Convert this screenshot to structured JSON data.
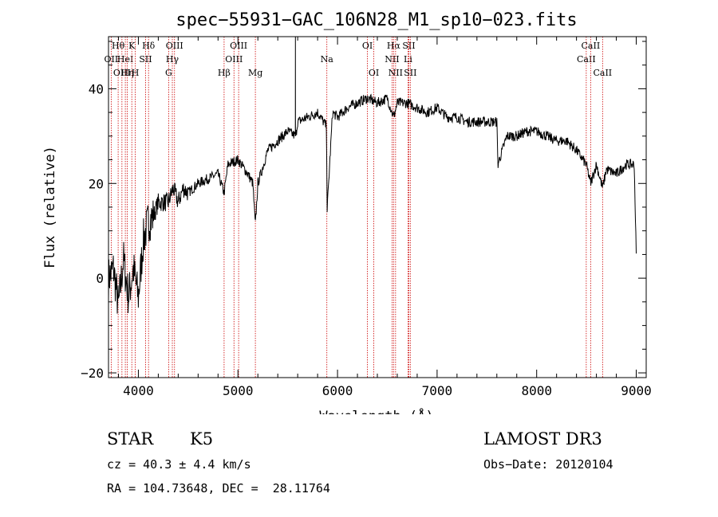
{
  "chart_data": {
    "type": "line",
    "title": "spec−55931−GAC_106N28_M1_sp10−023.fits",
    "xlabel": "Wavelength (Å)",
    "ylabel": "Flux (relative)",
    "xlim": [
      3700,
      9100
    ],
    "ylim": [
      -21,
      51
    ],
    "x_ticks": [
      4000,
      5000,
      6000,
      7000,
      8000,
      9000
    ],
    "y_ticks": [
      -20,
      0,
      20,
      40
    ],
    "y_tick_labels": [
      "−20",
      "0",
      "20",
      "40"
    ],
    "series": [
      {
        "name": "spectrum",
        "x": [
          3700,
          3750,
          3800,
          3850,
          3900,
          3950,
          4000,
          4050,
          4100,
          4150,
          4200,
          4250,
          4300,
          4350,
          4400,
          4450,
          4500,
          4600,
          4700,
          4800,
          4861,
          4900,
          5000,
          5100,
          5150,
          5175,
          5200,
          5300,
          5400,
          5500,
          5580,
          5600,
          5700,
          5800,
          5890,
          5895,
          5950,
          6000,
          6100,
          6200,
          6300,
          6400,
          6500,
          6563,
          6600,
          6700,
          6800,
          6900,
          7000,
          7100,
          7200,
          7300,
          7400,
          7500,
          7600,
          7610,
          7700,
          7800,
          7900,
          8000,
          8100,
          8200,
          8300,
          8400,
          8498,
          8542,
          8600,
          8662,
          8700,
          8800,
          8900,
          8980,
          9000
        ],
        "y": [
          0,
          2,
          -6,
          4,
          -4,
          2,
          -4,
          8,
          12,
          13,
          16,
          16,
          16,
          19,
          16,
          19,
          18,
          20,
          21,
          22,
          18,
          24,
          25,
          22,
          20,
          11,
          20,
          27,
          29,
          31,
          30,
          33,
          34,
          35,
          32,
          14,
          35,
          34,
          36,
          37,
          38,
          37,
          38,
          34,
          37,
          37,
          36,
          35,
          36,
          34,
          34,
          33,
          33,
          33,
          33,
          24,
          30,
          30,
          31,
          31,
          30,
          29,
          29,
          27,
          24,
          20,
          24,
          19,
          23,
          22,
          24,
          24,
          5
        ]
      }
    ],
    "emission_spike": {
      "x": 5577,
      "y": 51
    },
    "spectral_lines": [
      {
        "x": 3727,
        "label": "OII",
        "row": 2
      },
      {
        "x": 3797,
        "label": "Hθ",
        "row": 1
      },
      {
        "x": 3835,
        "label": "OIII",
        "row": 3
      },
      {
        "x": 3869,
        "label": "HeI",
        "row": 2
      },
      {
        "x": 3889,
        "label": "Hη",
        "row": 3
      },
      {
        "x": 3934,
        "label": "K",
        "row": 1
      },
      {
        "x": 3969,
        "label": "H",
        "row": 3
      },
      {
        "x": 4072,
        "label": "SII",
        "row": 2
      },
      {
        "x": 4102,
        "label": "Hδ",
        "row": 1
      },
      {
        "x": 4304,
        "label": "G",
        "row": 3
      },
      {
        "x": 4341,
        "label": "Hγ",
        "row": 2
      },
      {
        "x": 4363,
        "label": "OIII",
        "row": 1
      },
      {
        "x": 4861,
        "label": "Hβ",
        "row": 3
      },
      {
        "x": 4960,
        "label": "OIII",
        "row": 2
      },
      {
        "x": 5007,
        "label": "OIII",
        "row": 1
      },
      {
        "x": 5175,
        "label": "Mg",
        "row": 3
      },
      {
        "x": 5893,
        "label": "Na",
        "row": 2
      },
      {
        "x": 6300,
        "label": "OI",
        "row": 1
      },
      {
        "x": 6364,
        "label": "OI",
        "row": 3
      },
      {
        "x": 6548,
        "label": "NII",
        "row": 2
      },
      {
        "x": 6563,
        "label": "Hα",
        "row": 1
      },
      {
        "x": 6583,
        "label": "NII",
        "row": 3
      },
      {
        "x": 6708,
        "label": "Li",
        "row": 2
      },
      {
        "x": 6716,
        "label": "SII",
        "row": 1
      },
      {
        "x": 6731,
        "label": "SII",
        "row": 3
      },
      {
        "x": 8498,
        "label": "CaII",
        "row": 2
      },
      {
        "x": 8542,
        "label": "CaII",
        "row": 1
      },
      {
        "x": 8662,
        "label": "CaII",
        "row": 3
      }
    ],
    "colors": {
      "spectrum": "#000000",
      "lines": "#cc0000",
      "axes": "#000000"
    }
  },
  "info": {
    "object_class": "STAR",
    "subclass": "K5",
    "survey": "LAMOST DR3",
    "redshift": "cz = 40.3 ± 4.4 km/s",
    "obs_date": "Obs−Date: 20120104",
    "coords": "RA = 104.73648, DEC =  28.11764"
  }
}
